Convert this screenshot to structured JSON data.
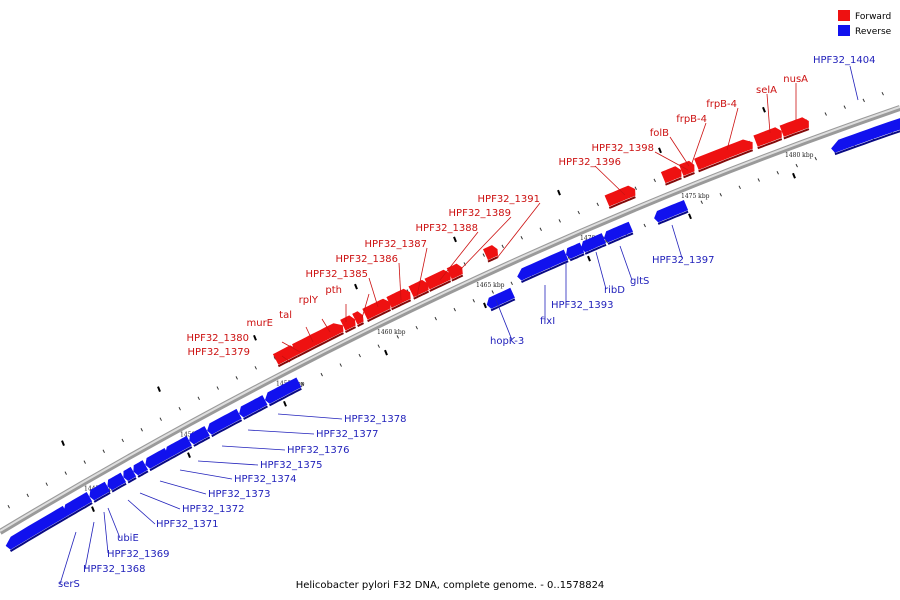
{
  "title": "Helicobacter pylori F32 DNA, complete genome. - 0..1578824",
  "legend": [
    {
      "label": "Forward",
      "color": "#ee1111"
    },
    {
      "label": "Reverse",
      "color": "#1111ee"
    }
  ],
  "colors": {
    "forward": "#ee1111",
    "reverse": "#1111ee",
    "forward_label": "#cc1111",
    "reverse_label": "#2222bb"
  },
  "axis_ticks": [
    "1445 kbp",
    "1450 kbp",
    "1455 kbp",
    "1460 kbp",
    "1465 kbp",
    "1470 kbp",
    "1475 kbp",
    "1480 kbp"
  ],
  "forward_genes": [
    "HPF32_1379",
    "HPF32_1380",
    "murE",
    "tal",
    "rplY",
    "pth",
    "HPF32_1385",
    "HPF32_1386",
    "HPF32_1387",
    "HPF32_1388",
    "HPF32_1389",
    "HPF32_1391",
    "HPF32_1396",
    "HPF32_1398",
    "folB",
    "frpB-4",
    "frpB-4",
    "selA",
    "nusA"
  ],
  "reverse_genes": [
    "serS",
    "HPF32_1368",
    "HPF32_1369",
    "ubiE",
    "HPF32_1371",
    "HPF32_1372",
    "HPF32_1373",
    "HPF32_1374",
    "HPF32_1375",
    "HPF32_1376",
    "HPF32_1377",
    "HPF32_1378",
    "hopK-3",
    "fixI",
    "HPF32_1393",
    "ribD",
    "gltS",
    "HPF32_1397",
    "HPF32_1404"
  ]
}
